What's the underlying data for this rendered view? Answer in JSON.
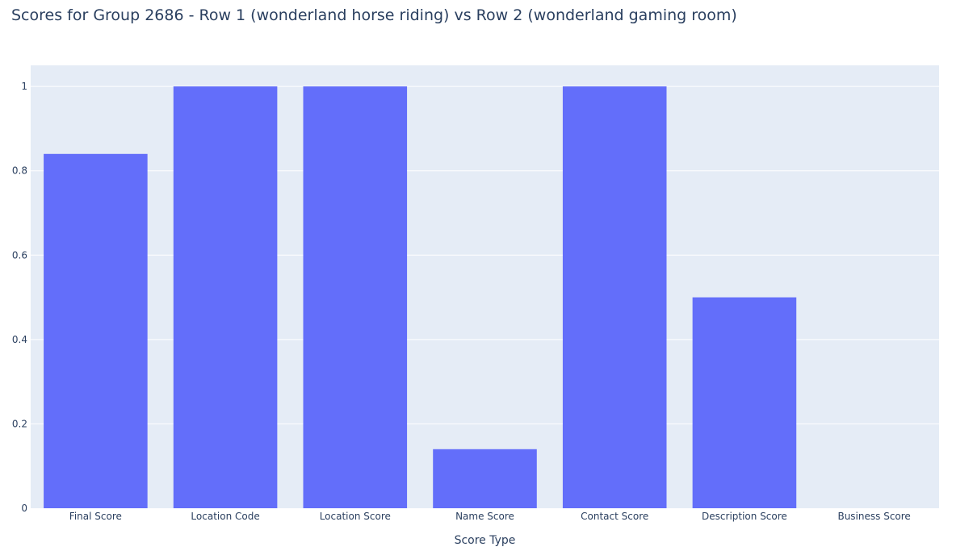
{
  "chart_data": {
    "type": "bar",
    "title": "Scores for Group 2686 - Row 1 (wonderland horse riding) vs Row 2 (wonderland gaming room)",
    "xlabel": "Score Type",
    "ylabel": "",
    "categories": [
      "Final Score",
      "Location Code",
      "Location Score",
      "Name Score",
      "Contact Score",
      "Description Score",
      "Business Score"
    ],
    "values": [
      0.84,
      1,
      1,
      0.14,
      1,
      0.5,
      0
    ],
    "ylim": [
      0,
      1.05
    ],
    "yticks": [
      0,
      0.2,
      0.4,
      0.6,
      0.8,
      1
    ],
    "ytick_labels": [
      "0",
      "0.2",
      "0.4",
      "0.6",
      "0.8",
      "1"
    ],
    "grid": true,
    "legend": "none",
    "colors": {
      "bar": "#636efa",
      "plot_background": "#e5ecf6",
      "grid": "#ffffff",
      "text": "#2a3f5f",
      "tick_text": "#2a3f5f"
    }
  }
}
